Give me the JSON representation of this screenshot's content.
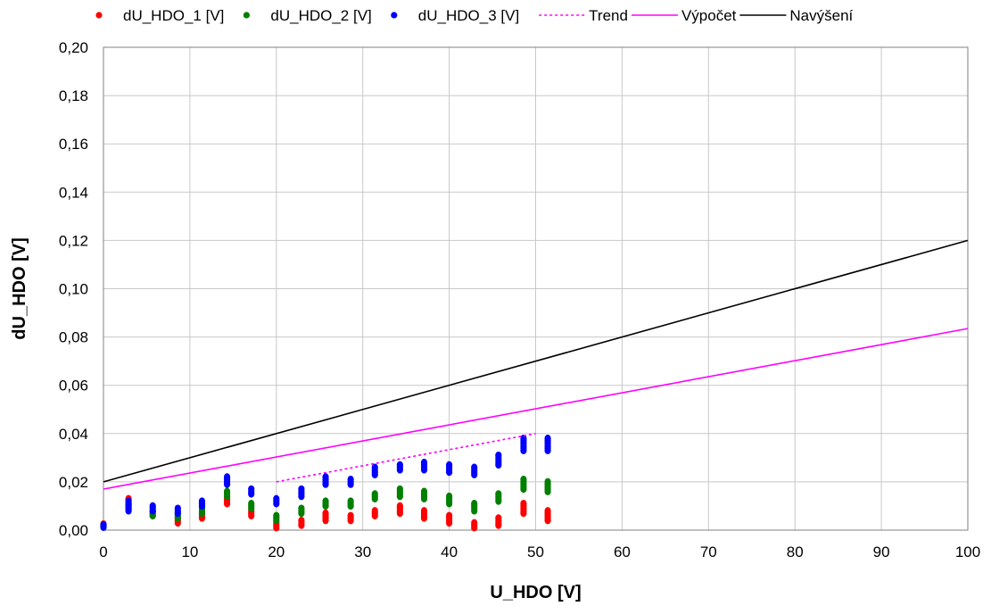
{
  "chart_data": {
    "type": "scatter",
    "xlabel": "U_HDO [V]",
    "ylabel": "dU_HDO [V]",
    "xlim": [
      0,
      100
    ],
    "ylim": [
      0,
      0.2
    ],
    "x_ticks": [
      "0",
      "10",
      "20",
      "30",
      "40",
      "50",
      "60",
      "70",
      "80",
      "90",
      "100"
    ],
    "y_ticks": [
      "0,00",
      "0,02",
      "0,04",
      "0,06",
      "0,08",
      "0,10",
      "0,12",
      "0,14",
      "0,16",
      "0,18",
      "0,20"
    ],
    "grid": true,
    "legend_position": "top",
    "scatter_series": [
      {
        "name": "dU_HDO_1 [V]",
        "color": "#ff0000",
        "points": [
          [
            0,
            0.0015
          ],
          [
            0,
            0.0025
          ],
          [
            2.9,
            0.0085
          ],
          [
            2.9,
            0.0105
          ],
          [
            2.9,
            0.0125
          ],
          [
            2.9,
            0.013
          ],
          [
            5.7,
            0.006
          ],
          [
            5.7,
            0.007
          ],
          [
            5.7,
            0.008
          ],
          [
            8.6,
            0.003
          ],
          [
            8.6,
            0.004
          ],
          [
            8.6,
            0.005
          ],
          [
            11.4,
            0.005
          ],
          [
            11.4,
            0.006
          ],
          [
            11.4,
            0.007
          ],
          [
            14.3,
            0.011
          ],
          [
            14.3,
            0.012
          ],
          [
            14.3,
            0.013
          ],
          [
            17.1,
            0.006
          ],
          [
            17.1,
            0.007
          ],
          [
            17.1,
            0.008
          ],
          [
            20,
            0.001
          ],
          [
            20,
            0.002
          ],
          [
            20,
            0.003
          ],
          [
            22.9,
            0.002
          ],
          [
            22.9,
            0.003
          ],
          [
            22.9,
            0.004
          ],
          [
            25.7,
            0.004
          ],
          [
            25.7,
            0.005
          ],
          [
            25.7,
            0.006
          ],
          [
            25.7,
            0.007
          ],
          [
            28.6,
            0.004
          ],
          [
            28.6,
            0.005
          ],
          [
            28.6,
            0.006
          ],
          [
            31.4,
            0.006
          ],
          [
            31.4,
            0.007
          ],
          [
            31.4,
            0.008
          ],
          [
            34.3,
            0.007
          ],
          [
            34.3,
            0.008
          ],
          [
            34.3,
            0.009
          ],
          [
            34.3,
            0.01
          ],
          [
            37.1,
            0.005
          ],
          [
            37.1,
            0.006
          ],
          [
            37.1,
            0.007
          ],
          [
            37.1,
            0.008
          ],
          [
            40,
            0.003
          ],
          [
            40,
            0.004
          ],
          [
            40,
            0.005
          ],
          [
            40,
            0.006
          ],
          [
            42.9,
            0.001
          ],
          [
            42.9,
            0.002
          ],
          [
            42.9,
            0.003
          ],
          [
            45.7,
            0.002
          ],
          [
            45.7,
            0.003
          ],
          [
            45.7,
            0.004
          ],
          [
            45.7,
            0.005
          ],
          [
            48.6,
            0.007
          ],
          [
            48.6,
            0.008
          ],
          [
            48.6,
            0.009
          ],
          [
            48.6,
            0.01
          ],
          [
            48.6,
            0.011
          ],
          [
            51.4,
            0.004
          ],
          [
            51.4,
            0.005
          ],
          [
            51.4,
            0.006
          ],
          [
            51.4,
            0.007
          ],
          [
            51.4,
            0.008
          ]
        ]
      },
      {
        "name": "dU_HDO_2 [V]",
        "color": "#008000",
        "points": [
          [
            0,
            0.0015
          ],
          [
            0,
            0.002
          ],
          [
            2.9,
            0.009
          ],
          [
            2.9,
            0.01
          ],
          [
            2.9,
            0.011
          ],
          [
            5.7,
            0.006
          ],
          [
            5.7,
            0.007
          ],
          [
            5.7,
            0.008
          ],
          [
            8.6,
            0.005
          ],
          [
            8.6,
            0.006
          ],
          [
            8.6,
            0.007
          ],
          [
            11.4,
            0.007
          ],
          [
            11.4,
            0.008
          ],
          [
            11.4,
            0.009
          ],
          [
            14.3,
            0.014
          ],
          [
            14.3,
            0.015
          ],
          [
            14.3,
            0.016
          ],
          [
            17.1,
            0.009
          ],
          [
            17.1,
            0.01
          ],
          [
            17.1,
            0.011
          ],
          [
            20,
            0.004
          ],
          [
            20,
            0.005
          ],
          [
            20,
            0.006
          ],
          [
            22.9,
            0.007
          ],
          [
            22.9,
            0.008
          ],
          [
            22.9,
            0.009
          ],
          [
            25.7,
            0.01
          ],
          [
            25.7,
            0.011
          ],
          [
            25.7,
            0.012
          ],
          [
            28.6,
            0.01
          ],
          [
            28.6,
            0.011
          ],
          [
            28.6,
            0.012
          ],
          [
            31.4,
            0.013
          ],
          [
            31.4,
            0.014
          ],
          [
            31.4,
            0.015
          ],
          [
            34.3,
            0.014
          ],
          [
            34.3,
            0.015
          ],
          [
            34.3,
            0.016
          ],
          [
            34.3,
            0.017
          ],
          [
            37.1,
            0.013
          ],
          [
            37.1,
            0.014
          ],
          [
            37.1,
            0.015
          ],
          [
            37.1,
            0.016
          ],
          [
            40,
            0.011
          ],
          [
            40,
            0.012
          ],
          [
            40,
            0.013
          ],
          [
            40,
            0.014
          ],
          [
            42.9,
            0.008
          ],
          [
            42.9,
            0.009
          ],
          [
            42.9,
            0.01
          ],
          [
            42.9,
            0.011
          ],
          [
            45.7,
            0.012
          ],
          [
            45.7,
            0.013
          ],
          [
            45.7,
            0.014
          ],
          [
            45.7,
            0.015
          ],
          [
            48.6,
            0.017
          ],
          [
            48.6,
            0.018
          ],
          [
            48.6,
            0.019
          ],
          [
            48.6,
            0.02
          ],
          [
            48.6,
            0.021
          ],
          [
            51.4,
            0.016
          ],
          [
            51.4,
            0.017
          ],
          [
            51.4,
            0.018
          ],
          [
            51.4,
            0.019
          ],
          [
            51.4,
            0.02
          ]
        ]
      },
      {
        "name": "dU_HDO_3 [V]",
        "color": "#0000ff",
        "points": [
          [
            0,
            0.0012
          ],
          [
            0,
            0.0022
          ],
          [
            2.9,
            0.008
          ],
          [
            2.9,
            0.009
          ],
          [
            2.9,
            0.01
          ],
          [
            2.9,
            0.011
          ],
          [
            2.9,
            0.012
          ],
          [
            5.7,
            0.008
          ],
          [
            5.7,
            0.009
          ],
          [
            5.7,
            0.01
          ],
          [
            8.6,
            0.007
          ],
          [
            8.6,
            0.008
          ],
          [
            8.6,
            0.009
          ],
          [
            11.4,
            0.01
          ],
          [
            11.4,
            0.011
          ],
          [
            11.4,
            0.012
          ],
          [
            14.3,
            0.019
          ],
          [
            14.3,
            0.02
          ],
          [
            14.3,
            0.021
          ],
          [
            14.3,
            0.022
          ],
          [
            17.1,
            0.015
          ],
          [
            17.1,
            0.016
          ],
          [
            17.1,
            0.017
          ],
          [
            20,
            0.011
          ],
          [
            20,
            0.012
          ],
          [
            20,
            0.013
          ],
          [
            22.9,
            0.014
          ],
          [
            22.9,
            0.015
          ],
          [
            22.9,
            0.016
          ],
          [
            22.9,
            0.017
          ],
          [
            25.7,
            0.019
          ],
          [
            25.7,
            0.02
          ],
          [
            25.7,
            0.021
          ],
          [
            25.7,
            0.022
          ],
          [
            28.6,
            0.019
          ],
          [
            28.6,
            0.02
          ],
          [
            28.6,
            0.021
          ],
          [
            31.4,
            0.023
          ],
          [
            31.4,
            0.024
          ],
          [
            31.4,
            0.025
          ],
          [
            31.4,
            0.026
          ],
          [
            34.3,
            0.025
          ],
          [
            34.3,
            0.026
          ],
          [
            34.3,
            0.027
          ],
          [
            37.1,
            0.025
          ],
          [
            37.1,
            0.026
          ],
          [
            37.1,
            0.027
          ],
          [
            37.1,
            0.028
          ],
          [
            40,
            0.024
          ],
          [
            40,
            0.025
          ],
          [
            40,
            0.026
          ],
          [
            40,
            0.027
          ],
          [
            42.9,
            0.023
          ],
          [
            42.9,
            0.024
          ],
          [
            42.9,
            0.025
          ],
          [
            42.9,
            0.026
          ],
          [
            45.7,
            0.027
          ],
          [
            45.7,
            0.028
          ],
          [
            45.7,
            0.029
          ],
          [
            45.7,
            0.03
          ],
          [
            45.7,
            0.031
          ],
          [
            48.6,
            0.033
          ],
          [
            48.6,
            0.034
          ],
          [
            48.6,
            0.035
          ],
          [
            48.6,
            0.036
          ],
          [
            48.6,
            0.037
          ],
          [
            48.6,
            0.038
          ],
          [
            51.4,
            0.033
          ],
          [
            51.4,
            0.034
          ],
          [
            51.4,
            0.035
          ],
          [
            51.4,
            0.036
          ],
          [
            51.4,
            0.037
          ],
          [
            51.4,
            0.038
          ]
        ]
      }
    ],
    "line_series": [
      {
        "name": "Trend",
        "color": "#ff00ff",
        "dash": true,
        "points": [
          [
            20,
            0.02
          ],
          [
            50,
            0.04
          ]
        ]
      },
      {
        "name": "Výpočet",
        "color": "#ff00ff",
        "dash": false,
        "points": [
          [
            0,
            0.017
          ],
          [
            100,
            0.0835
          ]
        ]
      },
      {
        "name": "Navýšení",
        "color": "#000000",
        "dash": false,
        "points": [
          [
            0,
            0.02
          ],
          [
            100,
            0.12
          ]
        ]
      }
    ]
  }
}
